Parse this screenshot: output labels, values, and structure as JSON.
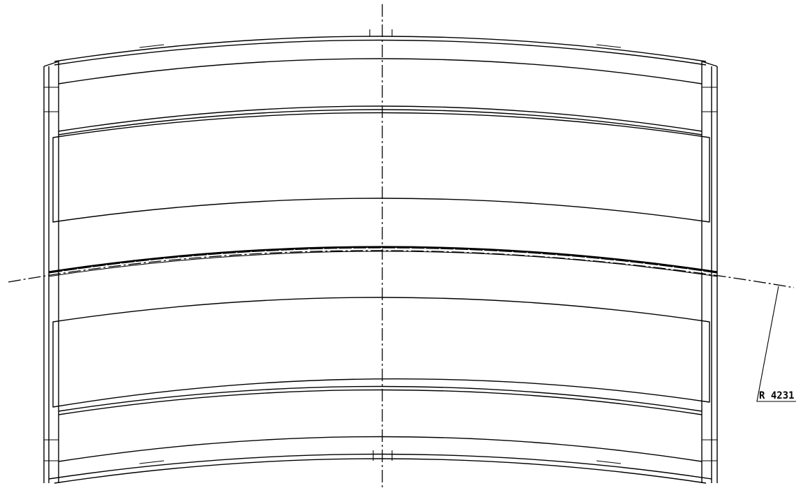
{
  "drawing": {
    "radius_annotation": "R 4231",
    "colors": {
      "line": "#000000",
      "background": "#ffffff"
    }
  }
}
